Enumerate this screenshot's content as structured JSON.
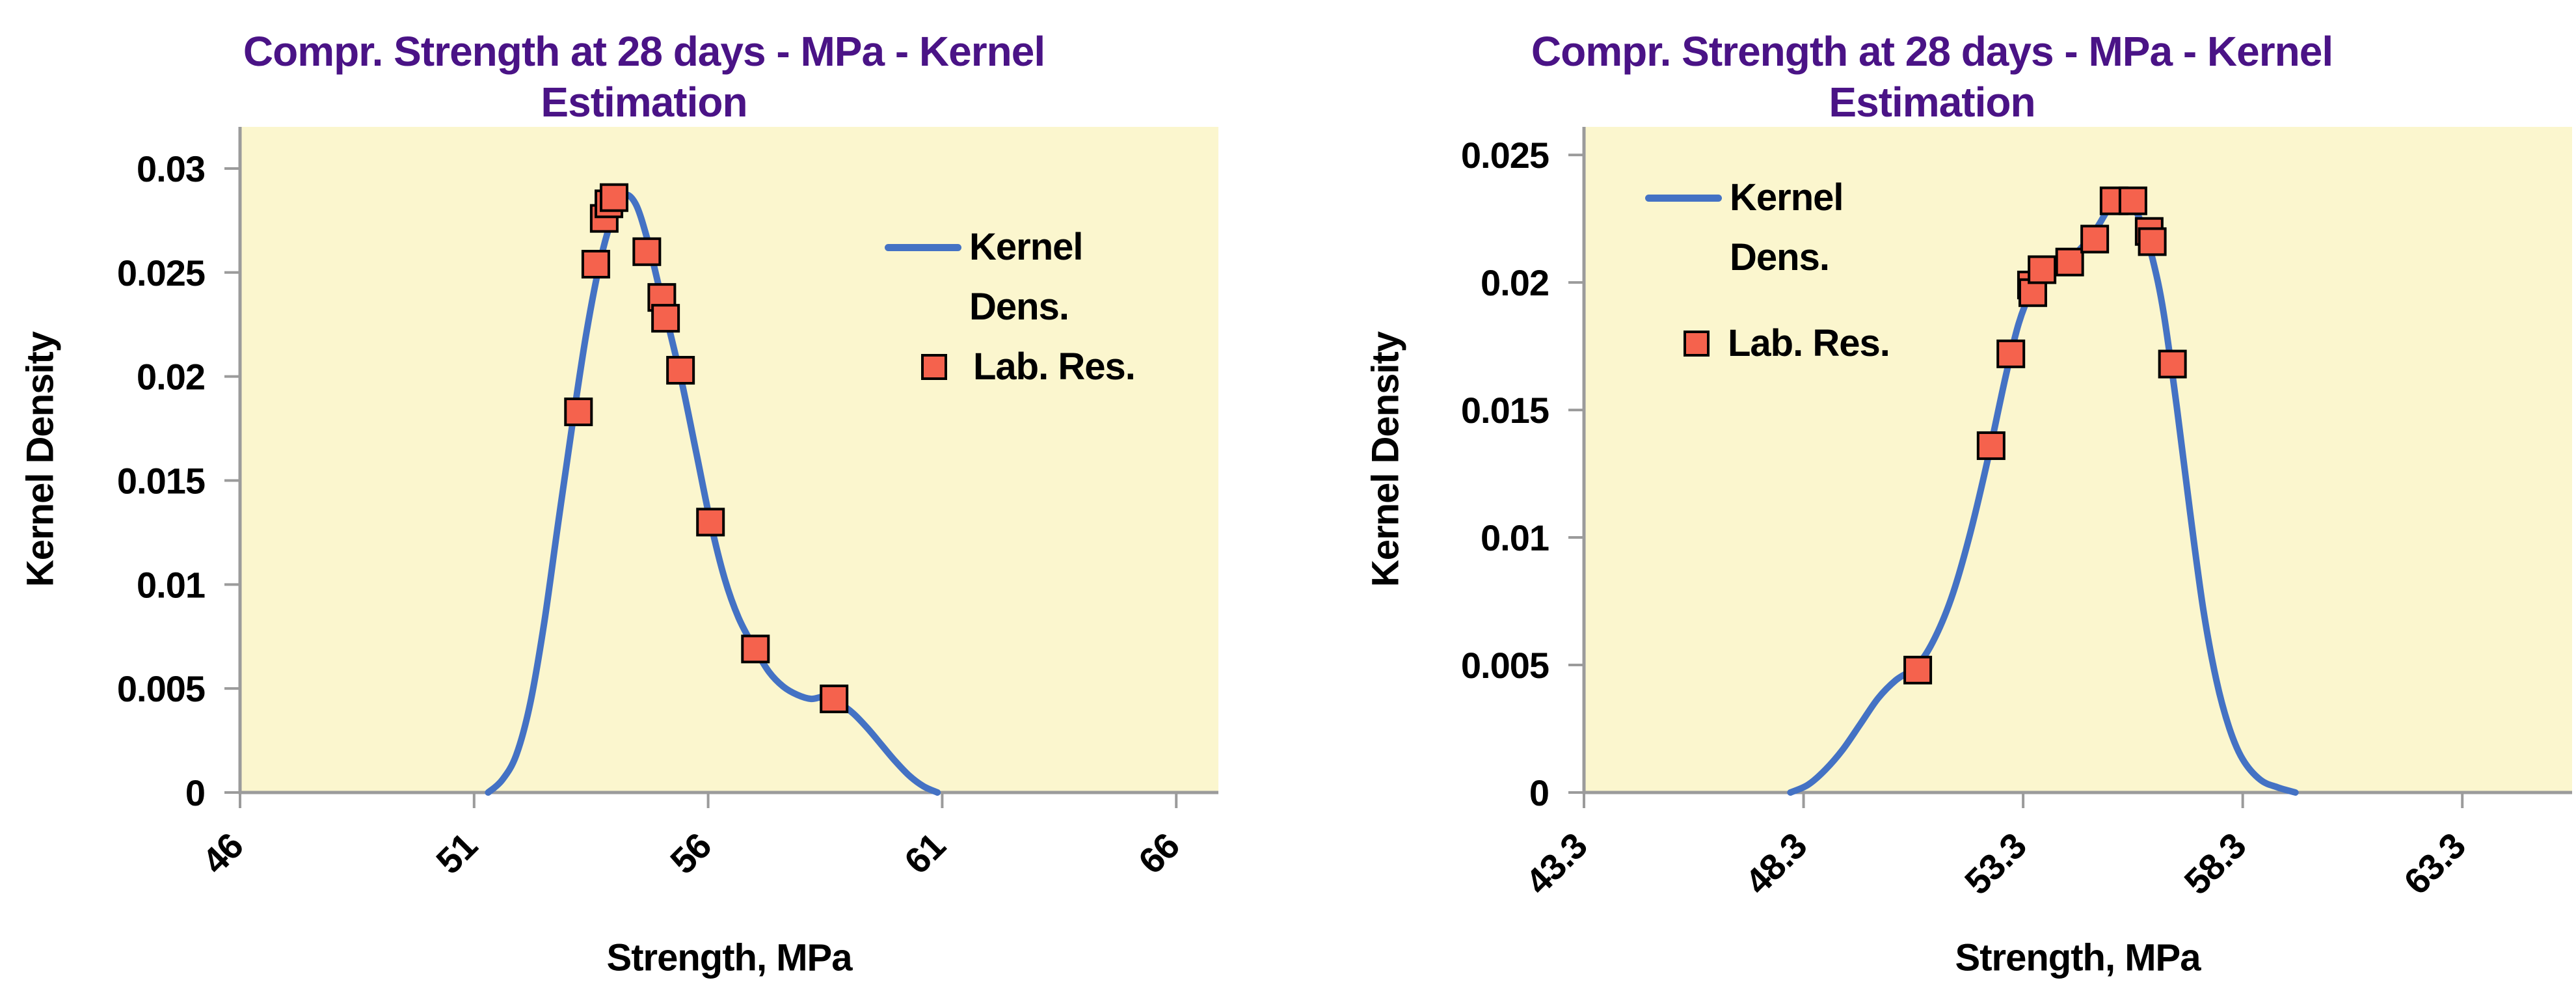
{
  "styles": {
    "accent_blue": "#4472C4",
    "marker_red": "#F5624D",
    "marker_border": "#000000",
    "title_purple": "#4A1386",
    "plot_bg": "#FBF6CE",
    "axis_grey": "#9B9B9B",
    "text_black": "#000000",
    "page_bg": "#FFFFFF"
  },
  "chart_data": [
    {
      "type": "line",
      "title": "Compr. Strength at 28 days - MPa - Kernel Estimation",
      "title_lines": [
        "Compr. Strength at 28 days - MPa - Kernel",
        "Estimation"
      ],
      "xlabel": "Strength, MPa",
      "ylabel": "Kernel Density",
      "xlim": [
        46,
        66.9
      ],
      "ylim": [
        0,
        0.032
      ],
      "grid": false,
      "plot_bg": "#FBF6CE",
      "legend_position": "inside-right",
      "x_ticks": [
        {
          "v": 46,
          "label": "46"
        },
        {
          "v": 51,
          "label": "51"
        },
        {
          "v": 56,
          "label": "56"
        },
        {
          "v": 61,
          "label": "61"
        },
        {
          "v": 66,
          "label": "66"
        }
      ],
      "y_ticks": [
        {
          "v": 0,
          "label": "0"
        },
        {
          "v": 0.005,
          "label": "0.005"
        },
        {
          "v": 0.01,
          "label": "0.01"
        },
        {
          "v": 0.015,
          "label": "0.015"
        },
        {
          "v": 0.02,
          "label": "0.02"
        },
        {
          "v": 0.025,
          "label": "0.025"
        },
        {
          "v": 0.03,
          "label": "0.03"
        }
      ],
      "legend_items": [
        {
          "marker": "line",
          "series": "Kernel Dens.",
          "display_lines": [
            "Kernel",
            "Dens."
          ]
        },
        {
          "marker": "square",
          "series": "Lab. Res.",
          "display_lines": [
            "Lab. Res."
          ]
        }
      ],
      "series": [
        {
          "name": "Kernel Dens.",
          "type": "line",
          "color": "#4472C4",
          "points": [
            [
              51.3,
              0
            ],
            [
              51.6,
              0.0006
            ],
            [
              51.9,
              0.0018
            ],
            [
              52.2,
              0.0043
            ],
            [
              52.5,
              0.0082
            ],
            [
              52.8,
              0.013
            ],
            [
              53.1,
              0.0177
            ],
            [
              53.4,
              0.0221
            ],
            [
              53.7,
              0.0256
            ],
            [
              53.95,
              0.0276
            ],
            [
              54.2,
              0.0287
            ],
            [
              54.45,
              0.0283
            ],
            [
              54.7,
              0.0266
            ],
            [
              54.95,
              0.0243
            ],
            [
              55.2,
              0.022
            ],
            [
              55.45,
              0.0196
            ],
            [
              55.75,
              0.0163
            ],
            [
              56.05,
              0.013
            ],
            [
              56.35,
              0.0103
            ],
            [
              56.65,
              0.0084
            ],
            [
              57.0,
              0.0069
            ],
            [
              57.3,
              0.0058
            ],
            [
              57.6,
              0.0051
            ],
            [
              57.9,
              0.0047
            ],
            [
              58.2,
              0.0045
            ],
            [
              58.5,
              0.0046
            ],
            [
              58.8,
              0.0043
            ],
            [
              59.1,
              0.0038
            ],
            [
              59.4,
              0.0031
            ],
            [
              59.7,
              0.0023
            ],
            [
              60.0,
              0.0015
            ],
            [
              60.3,
              0.0008
            ],
            [
              60.6,
              0.0003
            ],
            [
              60.9,
              0
            ]
          ]
        },
        {
          "name": "Lab. Res.",
          "type": "scatter",
          "marker": "square",
          "color": "#F5624D",
          "marker_border": "#000000",
          "points": [
            [
              53.23,
              0.0183
            ],
            [
              53.6,
              0.0254
            ],
            [
              53.78,
              0.0276
            ],
            [
              53.88,
              0.0283
            ],
            [
              53.99,
              0.0286
            ],
            [
              54.69,
              0.026
            ],
            [
              55.01,
              0.0238
            ],
            [
              55.09,
              0.0228
            ],
            [
              55.41,
              0.0203
            ],
            [
              56.05,
              0.013
            ],
            [
              57.01,
              0.0069
            ],
            [
              58.69,
              0.0045
            ]
          ]
        }
      ]
    },
    {
      "type": "line",
      "title": "Compr. Strength at 28 days - MPa - Kernel Estimation",
      "title_lines": [
        "Compr. Strength at 28 days - MPa - Kernel",
        "Estimation"
      ],
      "xlabel": "Strength, MPa",
      "ylabel": "Kernel Density",
      "xlim": [
        43.3,
        65.8
      ],
      "ylim": [
        0,
        0.0261
      ],
      "grid": false,
      "plot_bg": "#FBF6CE",
      "legend_position": "inside-left",
      "x_ticks": [
        {
          "v": 43.3,
          "label": "43.3"
        },
        {
          "v": 48.3,
          "label": "48.3"
        },
        {
          "v": 53.3,
          "label": "53.3"
        },
        {
          "v": 58.3,
          "label": "58.3"
        },
        {
          "v": 63.3,
          "label": "63.3"
        }
      ],
      "y_ticks": [
        {
          "v": 0,
          "label": "0"
        },
        {
          "v": 0.005,
          "label": "0.005"
        },
        {
          "v": 0.01,
          "label": "0.01"
        },
        {
          "v": 0.015,
          "label": "0.015"
        },
        {
          "v": 0.02,
          "label": "0.02"
        },
        {
          "v": 0.025,
          "label": "0.025"
        }
      ],
      "legend_items": [
        {
          "marker": "line",
          "series": "Kernel Dens.",
          "display_lines": [
            "Kernel",
            "Dens."
          ]
        },
        {
          "marker": "square",
          "series": "Lab. Res.",
          "display_lines": [
            "Lab. Res."
          ]
        }
      ],
      "series": [
        {
          "name": "Kernel Dens.",
          "type": "line",
          "color": "#4472C4",
          "points": [
            [
              48.0,
              0
            ],
            [
              48.4,
              0.0003
            ],
            [
              48.8,
              0.0009
            ],
            [
              49.2,
              0.0017
            ],
            [
              49.6,
              0.0027
            ],
            [
              50.0,
              0.0037
            ],
            [
              50.4,
              0.0044
            ],
            [
              50.9,
              0.005
            ],
            [
              51.3,
              0.0061
            ],
            [
              51.7,
              0.0078
            ],
            [
              52.1,
              0.0102
            ],
            [
              52.5,
              0.0131
            ],
            [
              52.9,
              0.0163
            ],
            [
              53.2,
              0.0184
            ],
            [
              53.5,
              0.0197
            ],
            [
              53.8,
              0.0204
            ],
            [
              54.1,
              0.0207
            ],
            [
              54.4,
              0.021
            ],
            [
              54.7,
              0.0215
            ],
            [
              55.0,
              0.0222
            ],
            [
              55.25,
              0.0229
            ],
            [
              55.5,
              0.0233
            ],
            [
              55.75,
              0.0231
            ],
            [
              56.0,
              0.0223
            ],
            [
              56.25,
              0.0209
            ],
            [
              56.5,
              0.0188
            ],
            [
              56.8,
              0.0151
            ],
            [
              57.1,
              0.011
            ],
            [
              57.4,
              0.0072
            ],
            [
              57.7,
              0.0044
            ],
            [
              58.0,
              0.0025
            ],
            [
              58.3,
              0.0013
            ],
            [
              58.7,
              0.0005
            ],
            [
              59.1,
              0.0002
            ],
            [
              59.5,
              0
            ]
          ]
        },
        {
          "name": "Lab. Res.",
          "type": "scatter",
          "marker": "square",
          "color": "#F5624D",
          "marker_border": "#000000",
          "points": [
            [
              50.9,
              0.0048
            ],
            [
              52.57,
              0.0136
            ],
            [
              53.02,
              0.0172
            ],
            [
              53.49,
              0.0199
            ],
            [
              53.52,
              0.0196
            ],
            [
              53.73,
              0.0205
            ],
            [
              54.36,
              0.0208
            ],
            [
              54.93,
              0.0217
            ],
            [
              55.37,
              0.0232
            ],
            [
              55.8,
              0.0232
            ],
            [
              56.17,
              0.022
            ],
            [
              56.24,
              0.0216
            ],
            [
              56.7,
              0.0168
            ]
          ]
        }
      ]
    }
  ]
}
